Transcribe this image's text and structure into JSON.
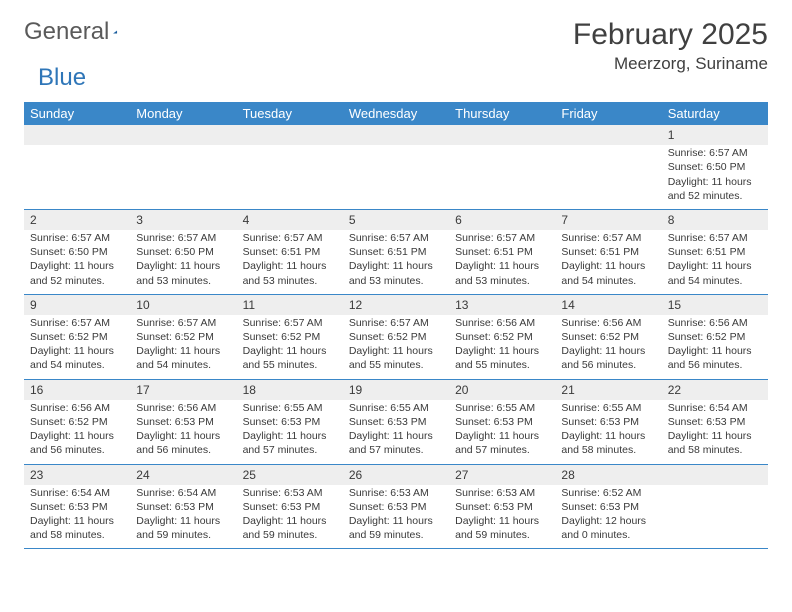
{
  "logo": {
    "word1": "General",
    "word2": "Blue"
  },
  "title": "February 2025",
  "location": "Meerzorg, Suriname",
  "colors": {
    "header_bg": "#3a87c8",
    "header_fg": "#ffffff",
    "daynum_bg": "#eeeeee",
    "rule": "#3a87c8",
    "text": "#3a3a3a"
  },
  "weekdays": [
    "Sunday",
    "Monday",
    "Tuesday",
    "Wednesday",
    "Thursday",
    "Friday",
    "Saturday"
  ],
  "weeks": [
    [
      null,
      null,
      null,
      null,
      null,
      null,
      {
        "n": "1",
        "sr": "Sunrise: 6:57 AM",
        "ss": "Sunset: 6:50 PM",
        "dl": "Daylight: 11 hours and 52 minutes."
      }
    ],
    [
      {
        "n": "2",
        "sr": "Sunrise: 6:57 AM",
        "ss": "Sunset: 6:50 PM",
        "dl": "Daylight: 11 hours and 52 minutes."
      },
      {
        "n": "3",
        "sr": "Sunrise: 6:57 AM",
        "ss": "Sunset: 6:50 PM",
        "dl": "Daylight: 11 hours and 53 minutes."
      },
      {
        "n": "4",
        "sr": "Sunrise: 6:57 AM",
        "ss": "Sunset: 6:51 PM",
        "dl": "Daylight: 11 hours and 53 minutes."
      },
      {
        "n": "5",
        "sr": "Sunrise: 6:57 AM",
        "ss": "Sunset: 6:51 PM",
        "dl": "Daylight: 11 hours and 53 minutes."
      },
      {
        "n": "6",
        "sr": "Sunrise: 6:57 AM",
        "ss": "Sunset: 6:51 PM",
        "dl": "Daylight: 11 hours and 53 minutes."
      },
      {
        "n": "7",
        "sr": "Sunrise: 6:57 AM",
        "ss": "Sunset: 6:51 PM",
        "dl": "Daylight: 11 hours and 54 minutes."
      },
      {
        "n": "8",
        "sr": "Sunrise: 6:57 AM",
        "ss": "Sunset: 6:51 PM",
        "dl": "Daylight: 11 hours and 54 minutes."
      }
    ],
    [
      {
        "n": "9",
        "sr": "Sunrise: 6:57 AM",
        "ss": "Sunset: 6:52 PM",
        "dl": "Daylight: 11 hours and 54 minutes."
      },
      {
        "n": "10",
        "sr": "Sunrise: 6:57 AM",
        "ss": "Sunset: 6:52 PM",
        "dl": "Daylight: 11 hours and 54 minutes."
      },
      {
        "n": "11",
        "sr": "Sunrise: 6:57 AM",
        "ss": "Sunset: 6:52 PM",
        "dl": "Daylight: 11 hours and 55 minutes."
      },
      {
        "n": "12",
        "sr": "Sunrise: 6:57 AM",
        "ss": "Sunset: 6:52 PM",
        "dl": "Daylight: 11 hours and 55 minutes."
      },
      {
        "n": "13",
        "sr": "Sunrise: 6:56 AM",
        "ss": "Sunset: 6:52 PM",
        "dl": "Daylight: 11 hours and 55 minutes."
      },
      {
        "n": "14",
        "sr": "Sunrise: 6:56 AM",
        "ss": "Sunset: 6:52 PM",
        "dl": "Daylight: 11 hours and 56 minutes."
      },
      {
        "n": "15",
        "sr": "Sunrise: 6:56 AM",
        "ss": "Sunset: 6:52 PM",
        "dl": "Daylight: 11 hours and 56 minutes."
      }
    ],
    [
      {
        "n": "16",
        "sr": "Sunrise: 6:56 AM",
        "ss": "Sunset: 6:52 PM",
        "dl": "Daylight: 11 hours and 56 minutes."
      },
      {
        "n": "17",
        "sr": "Sunrise: 6:56 AM",
        "ss": "Sunset: 6:53 PM",
        "dl": "Daylight: 11 hours and 56 minutes."
      },
      {
        "n": "18",
        "sr": "Sunrise: 6:55 AM",
        "ss": "Sunset: 6:53 PM",
        "dl": "Daylight: 11 hours and 57 minutes."
      },
      {
        "n": "19",
        "sr": "Sunrise: 6:55 AM",
        "ss": "Sunset: 6:53 PM",
        "dl": "Daylight: 11 hours and 57 minutes."
      },
      {
        "n": "20",
        "sr": "Sunrise: 6:55 AM",
        "ss": "Sunset: 6:53 PM",
        "dl": "Daylight: 11 hours and 57 minutes."
      },
      {
        "n": "21",
        "sr": "Sunrise: 6:55 AM",
        "ss": "Sunset: 6:53 PM",
        "dl": "Daylight: 11 hours and 58 minutes."
      },
      {
        "n": "22",
        "sr": "Sunrise: 6:54 AM",
        "ss": "Sunset: 6:53 PM",
        "dl": "Daylight: 11 hours and 58 minutes."
      }
    ],
    [
      {
        "n": "23",
        "sr": "Sunrise: 6:54 AM",
        "ss": "Sunset: 6:53 PM",
        "dl": "Daylight: 11 hours and 58 minutes."
      },
      {
        "n": "24",
        "sr": "Sunrise: 6:54 AM",
        "ss": "Sunset: 6:53 PM",
        "dl": "Daylight: 11 hours and 59 minutes."
      },
      {
        "n": "25",
        "sr": "Sunrise: 6:53 AM",
        "ss": "Sunset: 6:53 PM",
        "dl": "Daylight: 11 hours and 59 minutes."
      },
      {
        "n": "26",
        "sr": "Sunrise: 6:53 AM",
        "ss": "Sunset: 6:53 PM",
        "dl": "Daylight: 11 hours and 59 minutes."
      },
      {
        "n": "27",
        "sr": "Sunrise: 6:53 AM",
        "ss": "Sunset: 6:53 PM",
        "dl": "Daylight: 11 hours and 59 minutes."
      },
      {
        "n": "28",
        "sr": "Sunrise: 6:52 AM",
        "ss": "Sunset: 6:53 PM",
        "dl": "Daylight: 12 hours and 0 minutes."
      },
      null
    ]
  ]
}
